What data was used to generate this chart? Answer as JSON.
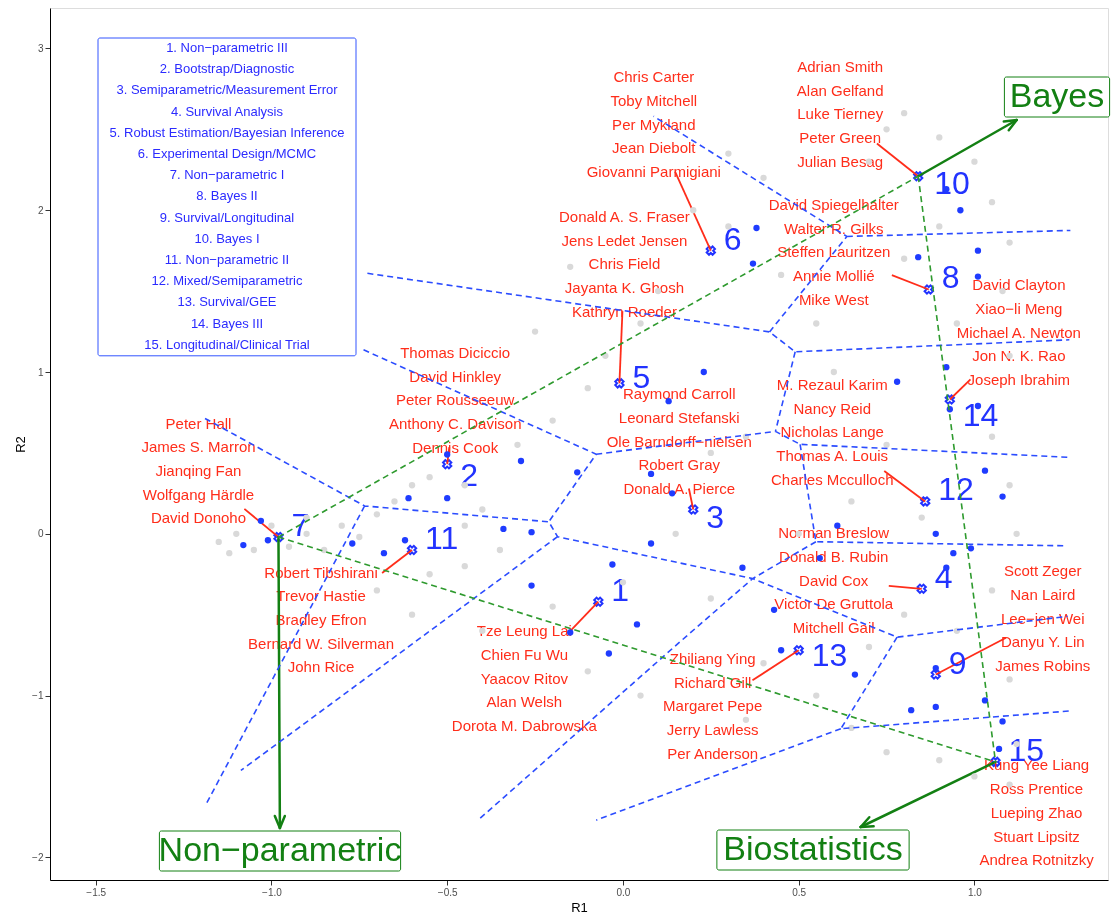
{
  "chart_data": {
    "type": "scatter",
    "xlabel": "R1",
    "ylabel": "R2",
    "xlim": [
      -1.63,
      1.38
    ],
    "ylim": [
      -2.14,
      3.25
    ],
    "xticks": [
      {
        "value": -1.5,
        "label": "−1.5"
      },
      {
        "value": -1.0,
        "label": "−1.0"
      },
      {
        "value": -0.5,
        "label": "−0.5"
      },
      {
        "value": 0.0,
        "label": "0.0"
      },
      {
        "value": 0.5,
        "label": "0.5"
      },
      {
        "value": 1.0,
        "label": "1.0"
      }
    ],
    "yticks": [
      {
        "value": -2,
        "label": "−2"
      },
      {
        "value": -1,
        "label": "−1"
      },
      0,
      1,
      2,
      3
    ],
    "grid": false,
    "series": [
      {
        "marker": "circle",
        "color": "#d9d9d9",
        "x": [
          -1.15,
          -1.1,
          -1.05,
          -1.0,
          -0.95,
          -0.9,
          -0.85,
          -0.9,
          -1.12,
          -0.8,
          -0.75,
          -0.7,
          -0.65,
          -0.6,
          -0.55,
          -0.45,
          -0.4,
          -0.45,
          -0.35,
          -0.55,
          -0.3,
          -0.2,
          -0.1,
          -0.05,
          0.05,
          0.1,
          -0.15,
          0.2,
          0.3,
          0.45,
          0.55,
          0.6,
          0.7,
          0.75,
          0.8,
          0.9,
          1.0,
          1.05,
          1.1,
          1.08,
          0.95,
          1.1,
          1.05,
          1.1,
          1.12,
          0.75,
          0.65,
          0.5,
          0.35,
          0.25,
          0.15,
          0.0,
          -0.2,
          -0.1,
          0.05,
          -0.4,
          -0.6,
          -0.7,
          0.25,
          0.4,
          0.55,
          0.65,
          0.75,
          0.9,
          1.0,
          1.1,
          1.12,
          1.1,
          0.95,
          1.05,
          0.8,
          0.7,
          0.35,
          0.4,
          -0.25,
          0.3,
          -0.45,
          0.85,
          0.9,
          0.8
        ],
        "values": [
          -0.05,
          0.0,
          -0.1,
          0.05,
          -0.08,
          0.0,
          -0.1,
          0.1,
          -0.12,
          0.05,
          -0.02,
          0.12,
          0.2,
          0.3,
          0.35,
          0.3,
          0.15,
          0.05,
          -0.1,
          -0.25,
          0.55,
          0.7,
          0.9,
          1.1,
          1.3,
          1.5,
          1.65,
          2.0,
          1.9,
          1.6,
          1.3,
          1.0,
          2.3,
          2.5,
          2.6,
          2.45,
          2.3,
          2.05,
          1.8,
          1.5,
          1.3,
          1.1,
          0.6,
          0.3,
          0.0,
          0.55,
          0.2,
          0.0,
          0.6,
          0.5,
          0.0,
          -0.3,
          -0.45,
          -0.85,
          -1.0,
          -0.6,
          -0.5,
          -0.35,
          -0.4,
          -0.8,
          -1.0,
          -1.2,
          -1.35,
          -1.4,
          -1.5,
          -1.55,
          -1.3,
          -0.9,
          -0.6,
          -0.35,
          -0.5,
          -0.7,
          -1.15,
          2.2,
          1.25,
          2.35,
          -0.2,
          0.1,
          1.9,
          1.7
        ]
      },
      {
        "marker": "circle",
        "color": "#1f3cff",
        "x": [
          0.38,
          0.37,
          0.92,
          0.96,
          0.84,
          1.01,
          1.01,
          0.92,
          1.01,
          0.78,
          0.93,
          1.03,
          1.08,
          0.89,
          0.94,
          0.99,
          0.92,
          0.61,
          0.56,
          0.34,
          0.43,
          0.45,
          0.66,
          0.82,
          0.89,
          0.89,
          1.03,
          1.08,
          1.07,
          0.23,
          0.13,
          0.08,
          0.14,
          0.08,
          -0.03,
          0.04,
          -0.04,
          -0.15,
          -0.26,
          -0.26,
          -0.34,
          -0.29,
          -0.13,
          -0.5,
          -0.5,
          -0.61,
          -0.62,
          -0.68,
          -0.77,
          -1.03,
          -1.08,
          -1.01
        ],
        "values": [
          1.89,
          1.67,
          2.13,
          2.0,
          1.71,
          1.75,
          1.59,
          1.03,
          0.79,
          0.94,
          0.77,
          0.39,
          0.23,
          0.0,
          -0.12,
          -0.09,
          -0.21,
          0.05,
          -0.15,
          -0.21,
          -0.47,
          -0.72,
          -0.87,
          -1.09,
          -1.07,
          -0.83,
          -1.03,
          -1.16,
          -1.33,
          1.0,
          0.82,
          0.37,
          0.25,
          -0.06,
          -0.19,
          -0.56,
          -0.74,
          -0.61,
          -0.32,
          0.01,
          0.03,
          0.45,
          0.38,
          0.49,
          0.22,
          0.22,
          -0.04,
          -0.12,
          -0.06,
          0.08,
          -0.07,
          -0.04
        ]
      },
      {
        "type": "line",
        "marker": "none",
        "line_style": "dashed",
        "color": "#2b4cff",
        "x": [
          -1.189,
          -0.735,
          -0.211,
          -0.186,
          0.369,
          0.78,
          1.265,
          null,
          -0.735,
          -1.189,
          null,
          -0.186,
          -1.087,
          null,
          -0.738,
          -0.076,
          -0.211,
          null,
          -0.076,
          0.434,
          0.504,
          1.265,
          null,
          0.504,
          0.549,
          1.254,
          null,
          0.549,
          0.369,
          0.158,
          -0.406,
          null,
          0.78,
          0.62,
          1.279,
          null,
          0.62,
          -0.076,
          null,
          -0.727,
          0.417,
          0.49,
          1.27,
          null,
          0.417,
          0.637,
          0.087,
          null,
          0.637,
          1.273,
          null,
          0.49,
          0.434
        ],
        "values": [
          0.713,
          0.172,
          0.074,
          -0.018,
          -0.277,
          -0.639,
          -0.51,
          null,
          0.172,
          -1.684,
          null,
          -0.018,
          -1.463,
          null,
          1.137,
          0.492,
          0.074,
          null,
          0.492,
          0.633,
          0.553,
          0.473,
          null,
          0.553,
          -0.049,
          -0.074,
          null,
          -0.049,
          -0.277,
          -0.676,
          -1.758,
          null,
          -0.639,
          -1.205,
          -1.094,
          null,
          -1.205,
          -1.77,
          null,
          1.61,
          1.248,
          1.125,
          1.199,
          null,
          1.248,
          1.838,
          2.581,
          null,
          1.838,
          1.875,
          null,
          1.125,
          0.633
        ]
      },
      {
        "type": "line",
        "marker": "none",
        "line_style": "dashed",
        "color": "#2e9a2e",
        "x": [
          -0.98,
          0.84
        ],
        "values": [
          -0.02,
          2.21
        ]
      },
      {
        "type": "line",
        "marker": "none",
        "line_style": "dashed",
        "color": "#2e9a2e",
        "x": [
          0.84,
          1.06
        ],
        "values": [
          2.21,
          -1.41
        ]
      },
      {
        "type": "line",
        "marker": "none",
        "line_style": "dashed",
        "color": "#2e9a2e",
        "x": [
          -0.98,
          1.06
        ],
        "values": [
          -0.02,
          -1.41
        ]
      },
      {
        "marker": "cross",
        "color": "#2233ff",
        "x": [
          -0.07,
          -0.5,
          0.2,
          0.85,
          -0.01,
          0.25,
          -0.98,
          0.87,
          0.89,
          0.84,
          -0.6,
          0.86,
          0.5,
          0.93,
          1.06
        ],
        "values": [
          -0.42,
          0.43,
          0.15,
          -0.34,
          0.93,
          1.75,
          -0.02,
          1.51,
          -0.87,
          2.21,
          -0.1,
          0.2,
          -0.72,
          0.83,
          -1.41
        ]
      }
    ],
    "annotations": [
      "1. Non−parametric III",
      "2. Bootstrap/Diagnostic",
      "3. Semiparametric/Measurement Error",
      "4. Survival Analysis",
      "5. Robust Estimation/Bayesian Inference",
      "6. Experimental Design/MCMC",
      "7. Non−parametric I",
      "8. Bayes II",
      "9. Survival/Longitudinal",
      "10. Bayes I",
      "11. Non−parametric II",
      "12. Mixed/Semiparametric",
      "13. Survival/GEE",
      "14. Bayes III",
      "15. Longitudinal/Clinical Trial",
      {
        "text": "Tze Leung Lai\nChien Fu Wu\nYaacov Ritov\nAlan Welsh\nDorota M. Dabrowska",
        "x": -0.07,
        "y": -0.42
      },
      {
        "text": "Thomas Diciccio\nDavid Hinkley\nPeter Rousseeuw\nAnthony C. Davison\nDennis Cook",
        "x": -0.5,
        "y": 0.43
      },
      {
        "text": "Raymond Carroll\nLeonard Stefanski\nOle Barndorff−nielsen\nRobert Gray\nDonald A. Pierce",
        "x": 0.2,
        "y": 0.15
      },
      {
        "text": "Norman Breslow\nDonald B. Rubin\nDavid Cox\nVictor De Gruttola\nMitchell Gail",
        "x": 0.85,
        "y": -0.34
      },
      {
        "text": "Donald A. S. Fraser\nJens Ledet Jensen\nChris Field\nJayanta K. Ghosh\nKathryn Roeder",
        "x": -0.01,
        "y": 0.93
      },
      {
        "text": "Chris Carter\nToby Mitchell\nPer Mykland\nJean Diebolt\nGiovanni Parmigiani",
        "x": 0.25,
        "y": 1.75
      },
      {
        "text": "Peter Hall\nJames S. Marron\nJianqing Fan\nWolfgang Härdle\nDavid Donoho",
        "x": -0.98,
        "y": -0.02
      },
      {
        "text": "David Spiegelhalter\nWalter R. Gilks\nSteffen Lauritzen\nAnnie Mollié\nMike West",
        "x": 0.87,
        "y": 1.51
      },
      {
        "text": "Scott Zeger\nNan Laird\nLee−jen Wei\nDanyu Y. Lin\nJames Robins",
        "x": 0.89,
        "y": -0.87
      },
      {
        "text": "Adrian Smith\nAlan Gelfand\nLuke Tierney\nPeter Green\nJulian Besag",
        "x": 0.84,
        "y": 2.21
      },
      {
        "text": "Robert Tibshirani\nTrevor Hastie\nBradley Efron\nBernard W. Silverman\nJohn Rice",
        "x": -0.6,
        "y": -0.1
      },
      {
        "text": "M. Rezaul Karim\nNancy Reid\nNicholas Lange\nThomas A. Louis\nCharles Mcculloch",
        "x": 0.86,
        "y": 0.2
      },
      {
        "text": "Zhiliang Ying\nRichard Gill\nMargaret Pepe\nJerry Lawless\nPer Anderson",
        "x": 0.5,
        "y": -0.72
      },
      {
        "text": "David Clayton\nXiao−li Meng\nMichael A. Newton\nJon N. K. Rao\nJoseph Ibrahim",
        "x": 0.93,
        "y": 0.83
      },
      {
        "text": "Kung Yee Liang\nRoss Prentice\nLueping Zhao\nStuart Lipsitz\nAndrea Rotnitzky",
        "x": 1.06,
        "y": -1.41
      },
      {
        "text": "1",
        "x": -0.07,
        "y": -0.42
      },
      {
        "text": "2",
        "x": -0.5,
        "y": 0.43
      },
      {
        "text": "3",
        "x": 0.2,
        "y": 0.15
      },
      {
        "text": "4",
        "x": 0.85,
        "y": -0.34
      },
      {
        "text": "5",
        "x": -0.01,
        "y": 0.93
      },
      {
        "text": "6",
        "x": 0.25,
        "y": 1.75
      },
      {
        "text": "7",
        "x": -0.98,
        "y": -0.02
      },
      {
        "text": "8",
        "x": 0.87,
        "y": 1.51
      },
      {
        "text": "9",
        "x": 0.89,
        "y": -0.87
      },
      {
        "text": "10",
        "x": 0.84,
        "y": 2.21
      },
      {
        "text": "11",
        "x": -0.6,
        "y": -0.1
      },
      {
        "text": "12",
        "x": 0.86,
        "y": 0.2
      },
      {
        "text": "13",
        "x": 0.5,
        "y": -0.72
      },
      {
        "text": "14",
        "x": 0.93,
        "y": 0.83
      },
      {
        "text": "15",
        "x": 1.06,
        "y": -1.41
      },
      {
        "text": "Non−parametric",
        "x": -0.98,
        "y": -0.02
      },
      {
        "text": "Bayes",
        "x": 0.84,
        "y": 2.21
      },
      {
        "text": "Biostatistics",
        "x": 1.06,
        "y": -1.41
      }
    ]
  }
}
